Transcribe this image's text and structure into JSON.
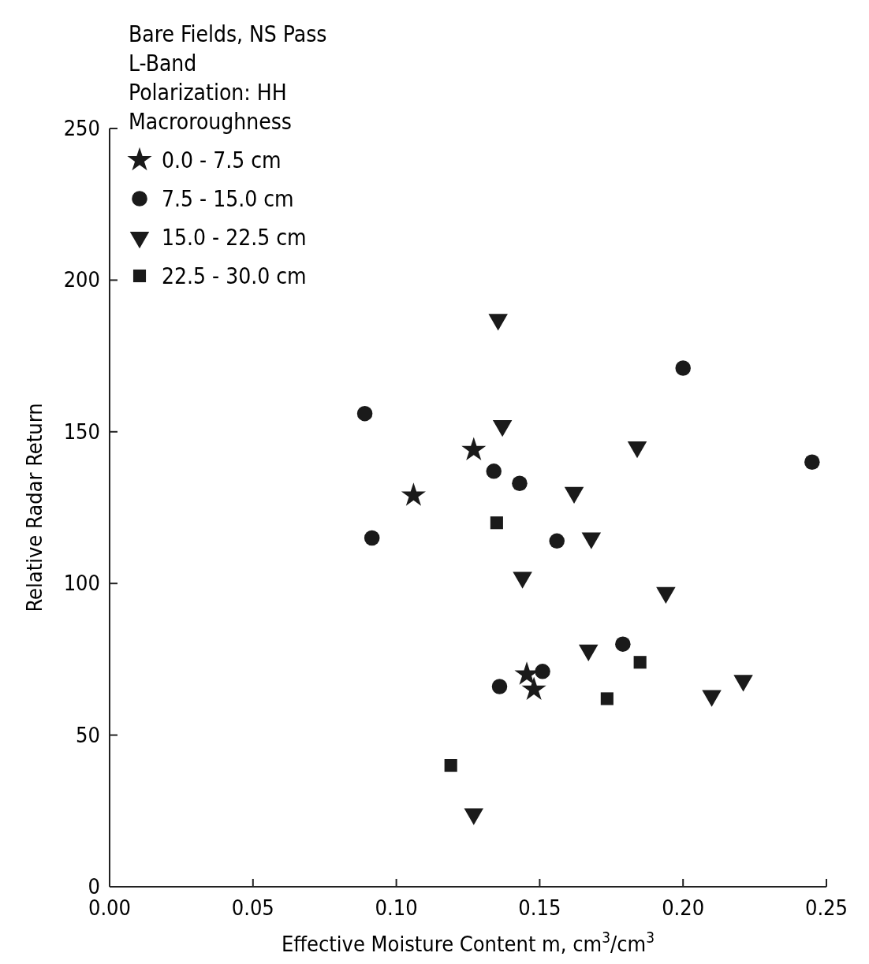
{
  "chart_data": {
    "type": "scatter",
    "title": "Bare Fields, NS Pass",
    "subtitle": "L-Band",
    "annotations": [
      "Polarization: HH"
    ],
    "legend_title": "Macroroughness",
    "legend": "top left",
    "xlabel": "Effective Moisture Content m, cm$^{3}$/cm$^{3}$",
    "ylabel": "Relative Radar Return",
    "xlim": [
      0,
      0.25
    ],
    "xticks": [
      {
        "value": 0,
        "label": "0.00"
      },
      {
        "value": 0.05,
        "label": "0.05"
      },
      {
        "value": 0.1,
        "label": "0.10"
      },
      {
        "value": 0.15,
        "label": "0.15"
      },
      {
        "value": 0.2,
        "label": "0.20"
      },
      {
        "value": 0.25,
        "label": "0.25"
      }
    ],
    "ylim": [
      0,
      250
    ],
    "yticks": [
      0,
      50,
      100,
      150,
      200,
      250
    ],
    "grid": false,
    "series": [
      {
        "name": "0.0 - 7.5 cm",
        "marker": "star",
        "color": "#1a1a1a",
        "x": [
          0.127,
          0.106,
          0.1455,
          0.148
        ],
        "values": [
          144,
          129,
          70,
          65
        ]
      },
      {
        "name": "7.5 - 15.0 cm",
        "marker": "circle",
        "color": "#1a1a1a",
        "x": [
          0.089,
          0.0915,
          0.134,
          0.143,
          0.156,
          0.136,
          0.151,
          0.179,
          0.2,
          0.245
        ],
        "values": [
          156,
          115,
          137,
          133,
          114,
          66,
          71,
          80,
          171,
          140
        ]
      },
      {
        "name": "15.0 - 22.5 cm",
        "marker": "triangle",
        "color": "#1a1a1a",
        "x": [
          0.1355,
          0.137,
          0.162,
          0.168,
          0.184,
          0.144,
          0.194,
          0.167,
          0.21,
          0.221,
          0.127
        ],
        "values": [
          187,
          152,
          130,
          115,
          145,
          102,
          97,
          78,
          63,
          68,
          24
        ]
      },
      {
        "name": "22.5 - 30.0 cm",
        "marker": "square",
        "color": "#1a1a1a",
        "x": [
          0.135,
          0.185,
          0.1735,
          0.119
        ],
        "values": [
          120,
          74,
          62,
          40
        ]
      }
    ]
  }
}
